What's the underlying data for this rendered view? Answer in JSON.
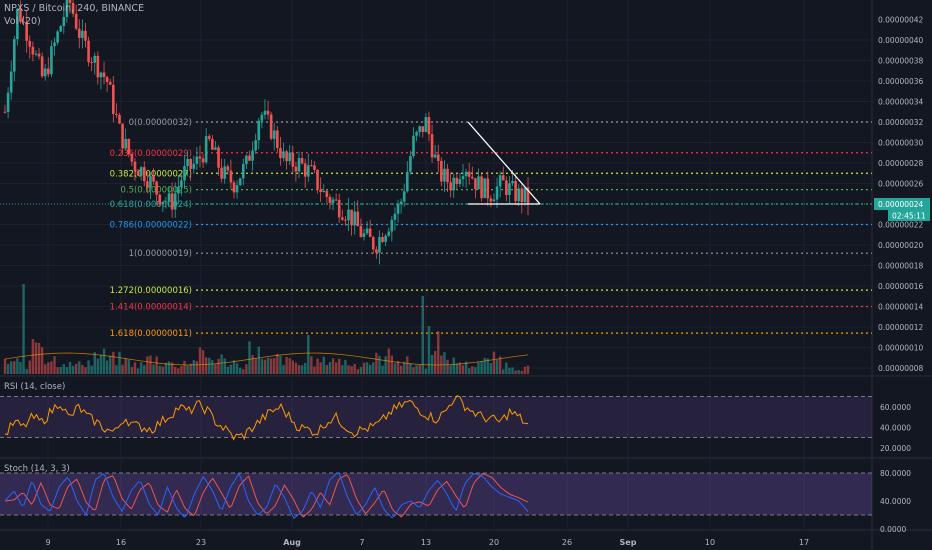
{
  "header": {
    "symbol_line": "NPXS / Bitcoin, 240, BINANCE",
    "vol_label": "Vol (20)"
  },
  "price_axis": {
    "ticks": [
      "0.00000040",
      "0.00000038",
      "0.00000036",
      "0.00000034",
      "0.00000032",
      "0.00000030",
      "0.00000028",
      "0.00000026",
      "0.00000022",
      "0.00000020",
      "0.00000018",
      "0.00000016",
      "0.00000014",
      "0.00000012",
      "0.00000010",
      "0.00000008"
    ],
    "tick_values": [
      40,
      38,
      36,
      34,
      32,
      30,
      28,
      26,
      22,
      20,
      18,
      16,
      14,
      12,
      10,
      8
    ],
    "top_value": 42,
    "current_price": "0.00000024",
    "countdown": "02:45:11",
    "partial_top": "0.00000042"
  },
  "fib_levels": [
    {
      "label": "0(0.00000032)",
      "value": 32,
      "color": "#9598a1"
    },
    {
      "label": "0.236(0.00000029)",
      "value": 29,
      "color": "#f23645"
    },
    {
      "label": "0.382(0.00000027)",
      "value": 27,
      "color": "#c8e63c"
    },
    {
      "label": "0.5(0.00000025)",
      "value": 25.4,
      "color": "#4caf50"
    },
    {
      "label": "0.618(0.00000024)",
      "value": 24,
      "color": "#26a69a"
    },
    {
      "label": "0.786(0.00000022)",
      "value": 22,
      "color": "#2196f3"
    },
    {
      "label": "1(0.00000019)",
      "value": 19.2,
      "color": "#9598a1"
    },
    {
      "label": "1.272(0.00000016)",
      "value": 15.6,
      "color": "#c8e63c"
    },
    {
      "label": "1.414(0.00000014)",
      "value": 14,
      "color": "#f23645"
    },
    {
      "label": "1.618(0.00000011)",
      "value": 11.4,
      "color": "#ff9800"
    }
  ],
  "rsi": {
    "title": "RSI (14, close)",
    "ticks": [
      "60.0000",
      "40.0000",
      "20.0000"
    ],
    "tick_values": [
      60,
      40,
      20
    ],
    "upper": 70,
    "lower": 30
  },
  "stoch": {
    "title": "Stoch (14, 3, 3)",
    "ticks": [
      "80.0000",
      "40.0000",
      "0.0000"
    ],
    "tick_values": [
      80,
      40,
      0
    ],
    "upper": 80,
    "lower": 20
  },
  "time_axis": {
    "labels": [
      "9",
      "16",
      "23",
      "Aug",
      "7",
      "13",
      "20",
      "26",
      "Sep",
      "10",
      "17"
    ]
  },
  "colors": {
    "up": "#26a69a",
    "down": "#ef5350",
    "rsi": "#ff9800",
    "stoch_k": "#2962ff",
    "stoch_d": "#ef5350",
    "band": "#7e57c2",
    "triangle": "#ffffff",
    "price_tag": "#26a69a"
  },
  "chart_data": {
    "type": "candlestick",
    "price_series": [
      33,
      43,
      40,
      36,
      40,
      44,
      40,
      38,
      36,
      31,
      28,
      27,
      25,
      24,
      27,
      28,
      30,
      27,
      26,
      28,
      33,
      31,
      28,
      28,
      27,
      25,
      24,
      23,
      21,
      20,
      22,
      24,
      30,
      32,
      27,
      26,
      28,
      26,
      25,
      26,
      25,
      24.5
    ],
    "triangle": {
      "apex_high": 32,
      "base": 24
    },
    "rsi_series": [
      32,
      45,
      40,
      50,
      45,
      55,
      65,
      48,
      60,
      50,
      45,
      38,
      35,
      50,
      42,
      40,
      38,
      45,
      52,
      60,
      55,
      62,
      57,
      45,
      38,
      30,
      32,
      40,
      48,
      55,
      60,
      50,
      40,
      38,
      35,
      45,
      50,
      42,
      35,
      38,
      40,
      45,
      55,
      60,
      65,
      58,
      52,
      48,
      55,
      70,
      62,
      55,
      50,
      48,
      45,
      55,
      50,
      42
    ],
    "stoch_k_series": [
      40,
      55,
      30,
      70,
      35,
      25,
      60,
      75,
      40,
      20,
      70,
      80,
      45,
      25,
      55,
      70,
      35,
      20,
      60,
      30,
      15,
      50,
      75,
      55,
      25,
      60,
      80,
      40,
      20,
      30,
      65,
      45,
      15,
      25,
      55,
      30,
      70,
      82,
      45,
      20,
      35,
      60,
      28,
      15,
      35,
      40,
      30,
      55,
      70,
      50,
      25,
      65,
      80,
      75,
      60,
      50,
      45,
      40,
      25
    ],
    "volume_series": [
      4,
      3,
      12,
      5,
      4,
      3,
      4,
      6,
      5,
      4,
      3,
      5,
      4,
      3,
      4,
      6,
      5,
      4,
      3,
      8,
      4,
      5,
      4,
      3,
      4,
      5,
      4,
      3,
      4,
      5,
      6,
      4,
      3,
      12,
      5,
      4,
      3,
      4,
      5,
      3,
      2,
      2
    ]
  }
}
